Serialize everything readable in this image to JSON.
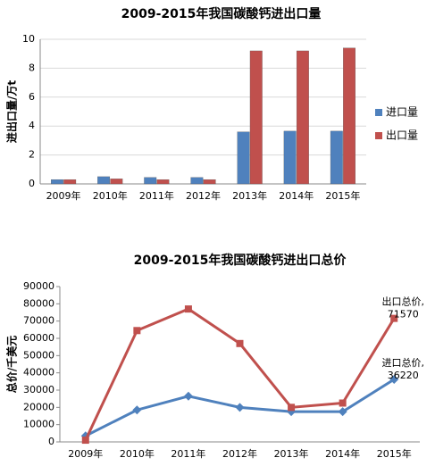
{
  "chart_data": [
    {
      "type": "bar",
      "title": "2009-2015年我国碳酸钙进出口量",
      "y_label": "进出口量/万t",
      "categories": [
        "2009年",
        "2010年",
        "2011年",
        "2012年",
        "2013年",
        "2014年",
        "2015年"
      ],
      "series": [
        {
          "name": "进口量",
          "color": "#4f81bd",
          "values": [
            0.3,
            0.5,
            0.45,
            0.45,
            3.6,
            3.65,
            3.65
          ]
        },
        {
          "name": "出口量",
          "color": "#c0504d",
          "values": [
            0.3,
            0.35,
            0.3,
            0.3,
            9.2,
            9.2,
            9.4
          ]
        }
      ],
      "ylim": [
        0,
        10
      ],
      "yticks": [
        0,
        2,
        4,
        6,
        8,
        10
      ],
      "grid": true,
      "legend": "right"
    },
    {
      "type": "line",
      "title": "2009-2015年我国碳酸钙进出口总价",
      "y_label": "总价/千美元",
      "categories": [
        "2009年",
        "2010年",
        "2011年",
        "2012年",
        "2013年",
        "2014年",
        "2015年"
      ],
      "series": [
        {
          "name": "进口总价,",
          "color": "#4f81bd",
          "values": [
            3500,
            18500,
            26500,
            20000,
            17500,
            17500,
            36220
          ],
          "value_labels": [
            null,
            null,
            null,
            null,
            null,
            null,
            "36220"
          ]
        },
        {
          "name": "出口总价,",
          "color": "#c0504d",
          "values": [
            1000,
            64500,
            77000,
            57000,
            20000,
            22500,
            71570
          ],
          "value_labels": [
            null,
            null,
            null,
            null,
            null,
            null,
            "71570"
          ]
        }
      ],
      "ylim": [
        0,
        90000
      ],
      "yticks": [
        0,
        10000,
        20000,
        30000,
        40000,
        50000,
        60000,
        70000,
        80000,
        90000
      ],
      "grid": false
    }
  ]
}
